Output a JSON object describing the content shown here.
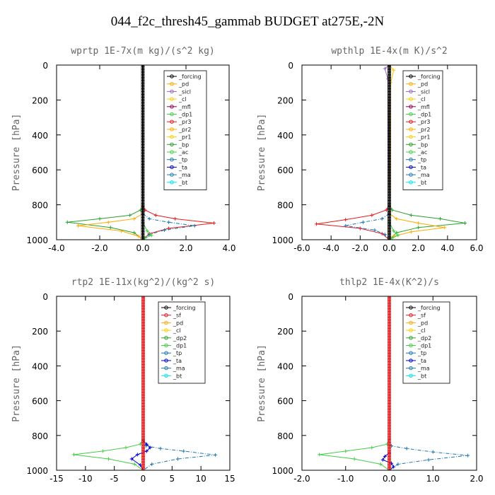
{
  "title": "044_f2c_thresh45_gammab  BUDGET at275E,-2N",
  "chart_data": [
    {
      "type": "line",
      "title": "wprtp  1E-7x(m kg)/(s^2 kg)",
      "ylabel": "Pressure [hPa]",
      "xlim": [
        -4,
        4
      ],
      "ylim": [
        0,
        1000
      ],
      "y_reversed": true,
      "xticks": [
        -4,
        -2,
        0,
        2,
        4
      ],
      "xtick_labels": [
        "-4.0",
        "-2.0",
        "0.0",
        "2.0",
        "4.0"
      ],
      "yticks": [
        0,
        200,
        400,
        600,
        800,
        1000
      ],
      "ytick_labels": [
        "0",
        "200",
        "400",
        "600",
        "800",
        "1000"
      ],
      "legend": [
        "_forcing",
        "_pd",
        "_sicl",
        "_cl",
        "_mfl",
        "_dp1",
        "_pr3",
        "_pr2",
        "_pr1",
        "_bp",
        "_ac",
        "_tp",
        "_ta",
        "_ma",
        "_bt"
      ],
      "series": [
        {
          "name": "_dp1",
          "color": "#e41a1c",
          "x": [
            0,
            0,
            0.1,
            0.6,
            1.5,
            3.3,
            1.2,
            0.3,
            0
          ],
          "y": [
            0,
            800,
            830,
            860,
            880,
            905,
            935,
            965,
            1000
          ]
        },
        {
          "name": "_bp",
          "color": "#2ca02c",
          "x": [
            0,
            0,
            -0.1,
            -0.6,
            -2.0,
            -3.5,
            -1.5,
            -0.4,
            0
          ],
          "y": [
            0,
            800,
            830,
            860,
            880,
            900,
            930,
            960,
            1000
          ]
        },
        {
          "name": "_pr2",
          "color": "#ffaa00",
          "x": [
            0,
            0,
            -0.4,
            -1.6,
            -3.0,
            -1.0,
            -0.2,
            0
          ],
          "y": [
            0,
            850,
            880,
            900,
            920,
            950,
            980,
            1000
          ]
        },
        {
          "name": "_tp",
          "color": "#1f77b4",
          "x": [
            0,
            0,
            0.3,
            1.2,
            2.4,
            1.0,
            0.3,
            0
          ],
          "y": [
            0,
            850,
            880,
            900,
            920,
            945,
            970,
            1000
          ]
        },
        {
          "name": "_ac",
          "color": "#44cc44",
          "x": [
            0,
            0,
            0.2,
            0.4,
            0.1,
            0
          ],
          "y": [
            0,
            900,
            950,
            975,
            990,
            1000
          ]
        },
        {
          "name": "_forcing",
          "color": "#000000",
          "x": [
            0,
            0
          ],
          "y": [
            0,
            1000
          ]
        }
      ]
    },
    {
      "type": "line",
      "title": "wpthlp  1E-4x(m K)/s^2",
      "ylabel": "Pressure [hPa]",
      "xlim": [
        -6,
        6
      ],
      "ylim": [
        0,
        1000
      ],
      "y_reversed": true,
      "xticks": [
        -6,
        -4,
        -2,
        0,
        2,
        4,
        6
      ],
      "xtick_labels": [
        "-6.0",
        "-4.0",
        "-2.0",
        "0.0",
        "2.0",
        "4.0",
        "6.0"
      ],
      "yticks": [
        0,
        200,
        400,
        600,
        800,
        1000
      ],
      "ytick_labels": [
        "0",
        "200",
        "400",
        "600",
        "800",
        "1000"
      ],
      "legend": [
        "_forcing",
        "_pd",
        "_sicl",
        "_cl",
        "_mfl",
        "_dp1",
        "_pr3",
        "_pr2",
        "_pr1",
        "_bp",
        "_ac",
        "_tp",
        "_ta",
        "_ma",
        "_bt"
      ],
      "series": [
        {
          "name": "_dp1",
          "color": "#e41a1c",
          "x": [
            0,
            0,
            -0.2,
            -1.2,
            -3.0,
            -5.0,
            -2.0,
            -0.5,
            0
          ],
          "y": [
            0,
            800,
            830,
            860,
            885,
            910,
            935,
            965,
            1000
          ]
        },
        {
          "name": "_bp",
          "color": "#2ca02c",
          "x": [
            0,
            0,
            0.2,
            1.5,
            3.5,
            5.2,
            2.0,
            0.5,
            0
          ],
          "y": [
            0,
            800,
            830,
            860,
            880,
            905,
            930,
            960,
            1000
          ]
        },
        {
          "name": "_pr2",
          "color": "#ffaa00",
          "x": [
            0,
            0,
            0.5,
            2.0,
            3.8,
            1.5,
            0.3,
            0
          ],
          "y": [
            0,
            850,
            880,
            905,
            930,
            955,
            980,
            1000
          ]
        },
        {
          "name": "_tp",
          "color": "#1f77b4",
          "x": [
            0,
            0,
            -0.5,
            -1.8,
            -3.0,
            -1.0,
            -0.3,
            0
          ],
          "y": [
            0,
            850,
            880,
            900,
            920,
            945,
            970,
            1000
          ]
        },
        {
          "name": "_ac",
          "color": "#44cc44",
          "x": [
            0,
            0,
            0.3,
            0.6,
            0.2,
            0
          ],
          "y": [
            0,
            900,
            950,
            975,
            990,
            1000
          ]
        },
        {
          "name": "_sicl",
          "color": "#9467bd",
          "x": [
            0,
            -0.3,
            -0.1,
            0
          ],
          "y": [
            0,
            20,
            80,
            1000
          ]
        },
        {
          "name": "_pr1",
          "color": "#ffcc00",
          "x": [
            0,
            0.3,
            0.1,
            0
          ],
          "y": [
            0,
            30,
            100,
            1000
          ]
        },
        {
          "name": "_forcing",
          "color": "#000000",
          "x": [
            0,
            0
          ],
          "y": [
            0,
            1000
          ]
        }
      ]
    },
    {
      "type": "line",
      "title": "rtp2  1E-11x(kg^2)/(kg^2 s)",
      "ylabel": "Pressure [hPa]",
      "xlim": [
        -15,
        15
      ],
      "ylim": [
        0,
        1000
      ],
      "y_reversed": true,
      "xticks": [
        -15,
        -10,
        -5,
        0,
        5,
        10,
        15
      ],
      "xtick_labels": [
        "-15",
        "-10",
        "-5",
        "0",
        "5",
        "10",
        "15"
      ],
      "yticks": [
        0,
        200,
        400,
        600,
        800,
        1000
      ],
      "ytick_labels": [
        "0",
        "200",
        "400",
        "600",
        "800",
        "1000"
      ],
      "legend": [
        "_forcing",
        "_sf",
        "_pd",
        "_cl",
        "_dp2",
        "_dp1",
        "_tp",
        "_ta",
        "_ma",
        "_bt"
      ],
      "series": [
        {
          "name": "_dp1",
          "color": "#44cc44",
          "x": [
            0,
            0,
            -0.5,
            -3.0,
            -7.0,
            -12.0,
            -6.0,
            -1.5,
            0
          ],
          "y": [
            0,
            820,
            850,
            870,
            890,
            910,
            935,
            965,
            1000
          ]
        },
        {
          "name": "_tp",
          "color": "#1f77b4",
          "x": [
            0,
            0,
            0.5,
            3.0,
            7.0,
            12.5,
            6.0,
            1.5,
            0
          ],
          "y": [
            0,
            840,
            860,
            875,
            890,
            912,
            935,
            965,
            1000
          ]
        },
        {
          "name": "_ta",
          "color": "#0000cc",
          "x": [
            0,
            0,
            0.6,
            1.2,
            0.6,
            -1.0,
            -2.0,
            -0.5,
            0
          ],
          "y": [
            0,
            830,
            850,
            870,
            890,
            910,
            935,
            970,
            1000
          ]
        },
        {
          "name": "_forcing",
          "color": "#e41a1c",
          "x": [
            0,
            0
          ],
          "y": [
            0,
            1000
          ]
        }
      ]
    },
    {
      "type": "line",
      "title": "thlp2  1E-4x(K^2)/s",
      "ylabel": "Pressure [hPa]",
      "xlim": [
        -2,
        2
      ],
      "ylim": [
        0,
        1000
      ],
      "y_reversed": true,
      "xticks": [
        -2,
        -1,
        0,
        1,
        2
      ],
      "xtick_labels": [
        "-2.0",
        "-1.0",
        "0.0",
        "1.0",
        "2.0"
      ],
      "yticks": [
        0,
        200,
        400,
        600,
        800,
        1000
      ],
      "ytick_labels": [
        "0",
        "200",
        "400",
        "600",
        "800",
        "1000"
      ],
      "legend": [
        "_forcing",
        "_sf",
        "_pd",
        "_cl",
        "_dp2",
        "_dp1",
        "_tp",
        "_ta",
        "_ma",
        "_bt"
      ],
      "series": [
        {
          "name": "_dp1",
          "color": "#44cc44",
          "x": [
            0,
            0,
            -0.05,
            -0.4,
            -1.0,
            -1.6,
            -0.8,
            -0.2,
            0
          ],
          "y": [
            0,
            820,
            850,
            870,
            890,
            910,
            935,
            965,
            1000
          ]
        },
        {
          "name": "_tp",
          "color": "#1f77b4",
          "x": [
            0,
            0,
            0.05,
            0.4,
            1.0,
            1.8,
            0.9,
            0.2,
            0
          ],
          "y": [
            0,
            840,
            860,
            875,
            895,
            915,
            940,
            965,
            1000
          ]
        },
        {
          "name": "_ta",
          "color": "#0000cc",
          "x": [
            0,
            0,
            -0.1,
            -0.15,
            0.05,
            0.1,
            0
          ],
          "y": [
            0,
            900,
            920,
            940,
            960,
            980,
            1000
          ]
        },
        {
          "name": "_forcing",
          "color": "#e41a1c",
          "x": [
            0,
            0
          ],
          "y": [
            0,
            1000
          ]
        }
      ]
    }
  ]
}
